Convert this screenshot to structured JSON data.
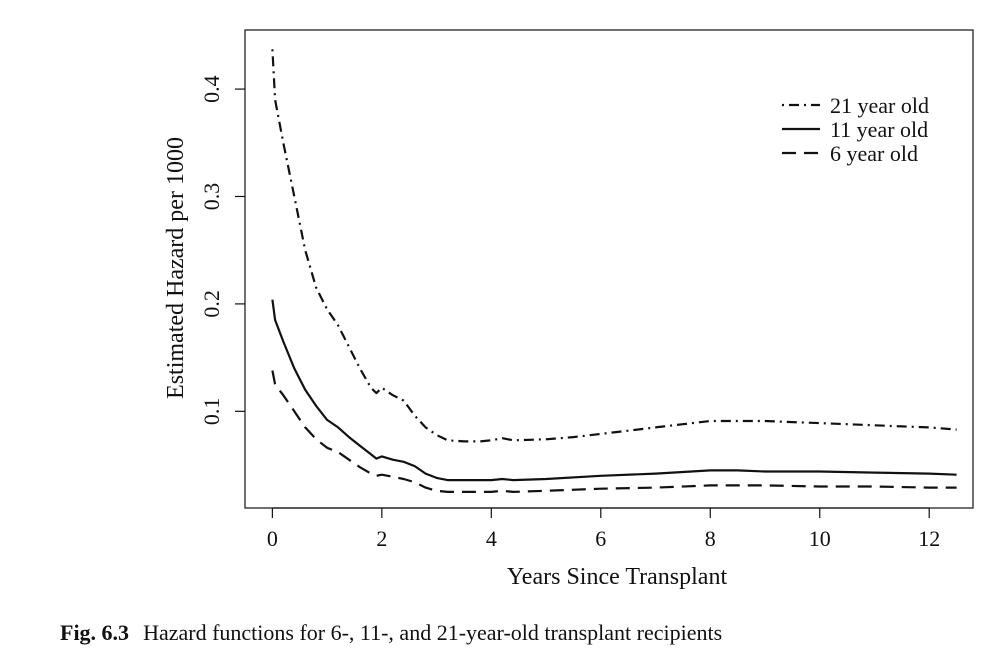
{
  "caption": {
    "label": "Fig. 6.3",
    "text": "Hazard functions for 6-, 11-, and 21-year-old transplant recipients"
  },
  "chart_data": {
    "type": "line",
    "title": "",
    "xlabel": "Years Since Transplant",
    "ylabel": "Estimated Hazard per 1000",
    "xlim": [
      -0.5,
      12.8
    ],
    "ylim": [
      0.01,
      0.455
    ],
    "x_ticks": [
      0,
      2,
      4,
      6,
      8,
      10,
      12
    ],
    "y_ticks": [
      0.1,
      0.2,
      0.3,
      0.4
    ],
    "grid": false,
    "legend": "top-right",
    "series": [
      {
        "name": "21 year old",
        "style": "dotdash",
        "points": [
          [
            0.0,
            0.437
          ],
          [
            0.05,
            0.39
          ],
          [
            0.2,
            0.35
          ],
          [
            0.4,
            0.3
          ],
          [
            0.6,
            0.25
          ],
          [
            0.8,
            0.215
          ],
          [
            1.0,
            0.195
          ],
          [
            1.2,
            0.18
          ],
          [
            1.4,
            0.16
          ],
          [
            1.6,
            0.14
          ],
          [
            1.8,
            0.122
          ],
          [
            1.9,
            0.117
          ],
          [
            2.0,
            0.122
          ],
          [
            2.2,
            0.115
          ],
          [
            2.4,
            0.11
          ],
          [
            2.6,
            0.096
          ],
          [
            2.8,
            0.085
          ],
          [
            3.0,
            0.078
          ],
          [
            3.2,
            0.073
          ],
          [
            3.5,
            0.072
          ],
          [
            3.8,
            0.072
          ],
          [
            4.0,
            0.073
          ],
          [
            4.2,
            0.075
          ],
          [
            4.4,
            0.073
          ],
          [
            5.0,
            0.074
          ],
          [
            5.5,
            0.076
          ],
          [
            6.0,
            0.079
          ],
          [
            6.5,
            0.082
          ],
          [
            7.0,
            0.085
          ],
          [
            7.5,
            0.088
          ],
          [
            8.0,
            0.091
          ],
          [
            8.5,
            0.091
          ],
          [
            9.0,
            0.091
          ],
          [
            9.5,
            0.09
          ],
          [
            10.0,
            0.089
          ],
          [
            10.5,
            0.088
          ],
          [
            11.0,
            0.087
          ],
          [
            11.5,
            0.086
          ],
          [
            12.0,
            0.085
          ],
          [
            12.5,
            0.083
          ]
        ]
      },
      {
        "name": "11 year old",
        "style": "solid",
        "points": [
          [
            0.0,
            0.204
          ],
          [
            0.05,
            0.185
          ],
          [
            0.2,
            0.165
          ],
          [
            0.4,
            0.14
          ],
          [
            0.6,
            0.12
          ],
          [
            0.8,
            0.105
          ],
          [
            1.0,
            0.092
          ],
          [
            1.2,
            0.085
          ],
          [
            1.4,
            0.076
          ],
          [
            1.6,
            0.068
          ],
          [
            1.8,
            0.06
          ],
          [
            1.9,
            0.056
          ],
          [
            2.0,
            0.058
          ],
          [
            2.2,
            0.055
          ],
          [
            2.4,
            0.053
          ],
          [
            2.6,
            0.049
          ],
          [
            2.8,
            0.042
          ],
          [
            3.0,
            0.038
          ],
          [
            3.2,
            0.036
          ],
          [
            3.5,
            0.036
          ],
          [
            4.0,
            0.036
          ],
          [
            4.2,
            0.037
          ],
          [
            4.4,
            0.036
          ],
          [
            5.0,
            0.037
          ],
          [
            6.0,
            0.04
          ],
          [
            7.0,
            0.042
          ],
          [
            8.0,
            0.045
          ],
          [
            8.5,
            0.045
          ],
          [
            9.0,
            0.044
          ],
          [
            10.0,
            0.044
          ],
          [
            11.0,
            0.043
          ],
          [
            12.0,
            0.042
          ],
          [
            12.5,
            0.041
          ]
        ]
      },
      {
        "name": "6 year old",
        "style": "dashed",
        "points": [
          [
            0.0,
            0.138
          ],
          [
            0.05,
            0.125
          ],
          [
            0.2,
            0.115
          ],
          [
            0.4,
            0.1
          ],
          [
            0.6,
            0.085
          ],
          [
            0.8,
            0.074
          ],
          [
            1.0,
            0.066
          ],
          [
            1.2,
            0.062
          ],
          [
            1.4,
            0.055
          ],
          [
            1.6,
            0.048
          ],
          [
            1.8,
            0.042
          ],
          [
            1.9,
            0.04
          ],
          [
            2.0,
            0.041
          ],
          [
            2.2,
            0.039
          ],
          [
            2.4,
            0.037
          ],
          [
            2.6,
            0.034
          ],
          [
            2.8,
            0.029
          ],
          [
            3.0,
            0.026
          ],
          [
            3.2,
            0.025
          ],
          [
            3.5,
            0.025
          ],
          [
            4.0,
            0.025
          ],
          [
            4.2,
            0.026
          ],
          [
            4.4,
            0.025
          ],
          [
            5.0,
            0.026
          ],
          [
            6.0,
            0.028
          ],
          [
            7.0,
            0.029
          ],
          [
            8.0,
            0.031
          ],
          [
            9.0,
            0.031
          ],
          [
            10.0,
            0.03
          ],
          [
            11.0,
            0.03
          ],
          [
            12.0,
            0.029
          ],
          [
            12.5,
            0.029
          ]
        ]
      }
    ]
  }
}
